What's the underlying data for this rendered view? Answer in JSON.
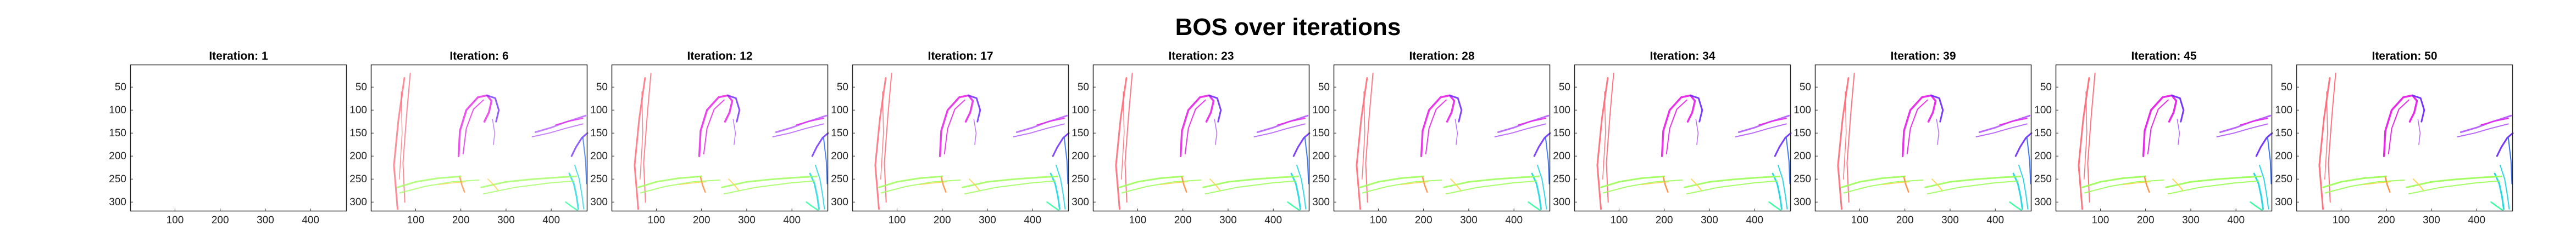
{
  "title": "BOS over iterations",
  "colors": {
    "axis": "#262626",
    "background": "#ffffff",
    "curves": [
      "#ff6a78",
      "#e81ee8",
      "#6f2bff",
      "#b45cff",
      "#9dff5a",
      "#ffd24a",
      "#ff8a3a",
      "#19d6e0",
      "#2bff9a",
      "#2a6cff"
    ]
  },
  "chart_data": [
    {
      "type": "heatmap",
      "title": "Iteration: 1",
      "iteration": 1,
      "intensity": 0,
      "xticks": [
        100,
        200,
        300,
        400
      ],
      "yticks": [
        50,
        100,
        150,
        200,
        250,
        300
      ],
      "xlim": [
        1,
        480
      ],
      "ylim": [
        1,
        320
      ],
      "grid": false,
      "legend": "none"
    },
    {
      "type": "heatmap",
      "title": "Iteration: 6",
      "iteration": 6,
      "intensity": 0.7,
      "xticks": [
        100,
        200,
        300,
        400
      ],
      "yticks": [
        50,
        100,
        150,
        200,
        250,
        300
      ],
      "xlim": [
        1,
        480
      ],
      "ylim": [
        1,
        320
      ],
      "grid": false,
      "legend": "none"
    },
    {
      "type": "heatmap",
      "title": "Iteration: 12",
      "iteration": 12,
      "intensity": 0.8,
      "xticks": [
        100,
        200,
        300,
        400
      ],
      "yticks": [
        50,
        100,
        150,
        200,
        250,
        300
      ],
      "xlim": [
        1,
        480
      ],
      "ylim": [
        1,
        320
      ],
      "grid": false,
      "legend": "none"
    },
    {
      "type": "heatmap",
      "title": "Iteration: 17",
      "iteration": 17,
      "intensity": 0.85,
      "xticks": [
        100,
        200,
        300,
        400
      ],
      "yticks": [
        50,
        100,
        150,
        200,
        250,
        300
      ],
      "xlim": [
        1,
        480
      ],
      "ylim": [
        1,
        320
      ],
      "grid": false,
      "legend": "none"
    },
    {
      "type": "heatmap",
      "title": "Iteration: 23",
      "iteration": 23,
      "intensity": 0.9,
      "xticks": [
        100,
        200,
        300,
        400
      ],
      "yticks": [
        50,
        100,
        150,
        200,
        250,
        300
      ],
      "xlim": [
        1,
        480
      ],
      "ylim": [
        1,
        320
      ],
      "grid": false,
      "legend": "none"
    },
    {
      "type": "heatmap",
      "title": "Iteration: 28",
      "iteration": 28,
      "intensity": 0.9,
      "xticks": [
        100,
        200,
        300,
        400
      ],
      "yticks": [
        50,
        100,
        150,
        200,
        250,
        300
      ],
      "xlim": [
        1,
        480
      ],
      "ylim": [
        1,
        320
      ],
      "grid": false,
      "legend": "none"
    },
    {
      "type": "heatmap",
      "title": "Iteration: 34",
      "iteration": 34,
      "intensity": 0.95,
      "xticks": [
        100,
        200,
        300,
        400
      ],
      "yticks": [
        50,
        100,
        150,
        200,
        250,
        300
      ],
      "xlim": [
        1,
        480
      ],
      "ylim": [
        1,
        320
      ],
      "grid": false,
      "legend": "none"
    },
    {
      "type": "heatmap",
      "title": "Iteration: 39",
      "iteration": 39,
      "intensity": 0.95,
      "xticks": [
        100,
        200,
        300,
        400
      ],
      "yticks": [
        50,
        100,
        150,
        200,
        250,
        300
      ],
      "xlim": [
        1,
        480
      ],
      "ylim": [
        1,
        320
      ],
      "grid": false,
      "legend": "none"
    },
    {
      "type": "heatmap",
      "title": "Iteration: 45",
      "iteration": 45,
      "intensity": 1,
      "xticks": [
        100,
        200,
        300,
        400
      ],
      "yticks": [
        50,
        100,
        150,
        200,
        250,
        300
      ],
      "xlim": [
        1,
        480
      ],
      "ylim": [
        1,
        320
      ],
      "grid": false,
      "legend": "none"
    },
    {
      "type": "heatmap",
      "title": "Iteration: 50",
      "iteration": 50,
      "intensity": 1,
      "xticks": [
        100,
        200,
        300,
        400
      ],
      "yticks": [
        50,
        100,
        150,
        200,
        250,
        300
      ],
      "xlim": [
        1,
        480
      ],
      "ylim": [
        1,
        320
      ],
      "grid": false,
      "legend": "none"
    }
  ]
}
